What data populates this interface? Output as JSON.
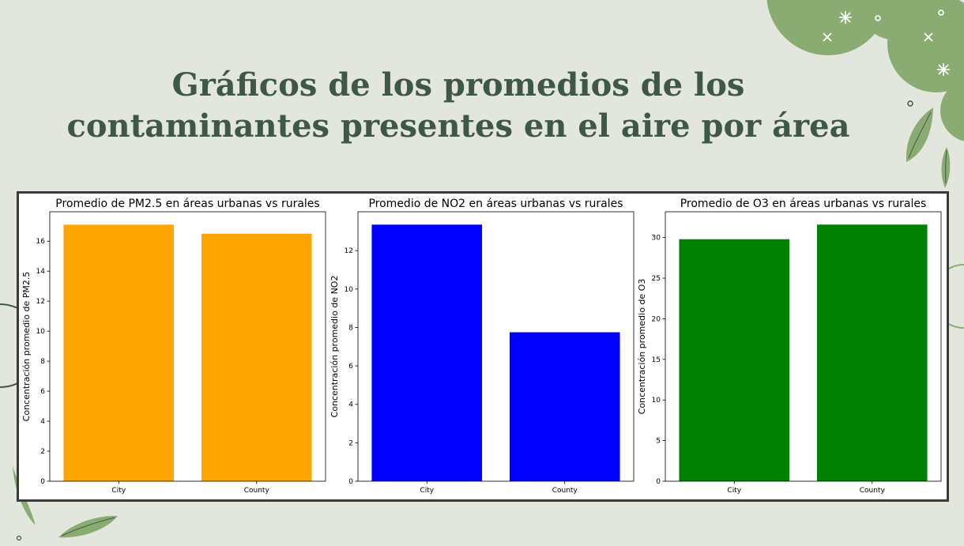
{
  "slide": {
    "title_line1": "Gráficos de los promedios de los",
    "title_line2": "contaminantes presentes en el aire por área"
  },
  "theme": {
    "background": "#e2e6dc",
    "title_color": "#3f5846",
    "leaf_color": "#8aac72"
  },
  "chart_data": [
    {
      "type": "bar",
      "title": "Promedio de PM2.5 en áreas urbanas vs rurales",
      "xlabel": "",
      "ylabel": "Concentración promedio de PM2.5",
      "categories": [
        "City",
        "County"
      ],
      "values": [
        17.1,
        16.5
      ],
      "ylim": [
        0,
        17.96
      ],
      "yticks": [
        0,
        2,
        4,
        6,
        8,
        10,
        12,
        14,
        16
      ],
      "color": "#ffa500",
      "grid": false
    },
    {
      "type": "bar",
      "title": "Promedio de NO2 en áreas urbanas vs rurales",
      "xlabel": "",
      "ylabel": "Concentración promedio de NO2",
      "categories": [
        "City",
        "County"
      ],
      "values": [
        13.35,
        7.75
      ],
      "ylim": [
        0,
        14.02
      ],
      "yticks": [
        0,
        2,
        4,
        6,
        8,
        10,
        12
      ],
      "color": "#0000ff",
      "grid": false
    },
    {
      "type": "bar",
      "title": "Promedio de O3 en áreas urbanas vs rurales",
      "xlabel": "",
      "ylabel": "Concentración promedio de O3",
      "categories": [
        "City",
        "County"
      ],
      "values": [
        29.8,
        31.6
      ],
      "ylim": [
        0,
        33.18
      ],
      "yticks": [
        0,
        5,
        10,
        15,
        20,
        25,
        30
      ],
      "color": "#008000",
      "grid": false
    }
  ]
}
